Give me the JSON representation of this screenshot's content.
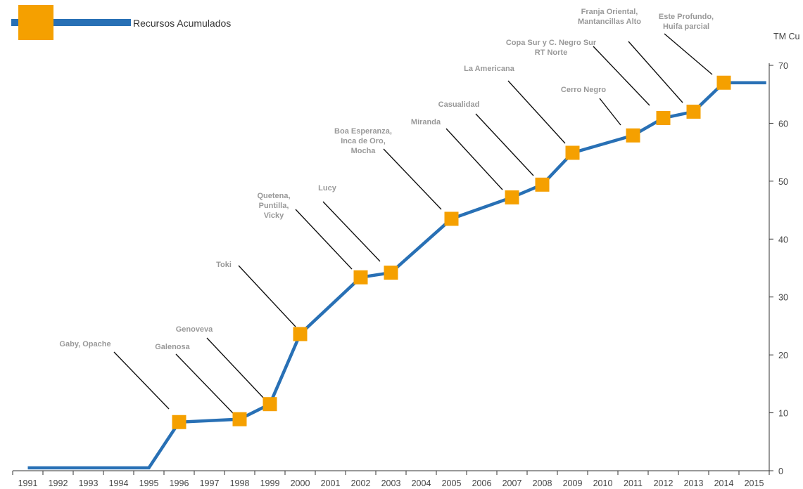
{
  "chart_data": {
    "type": "line",
    "title": "",
    "xlabel": "",
    "ylabel": "TM Cu",
    "legend": {
      "label": "Recursos Acumulados",
      "placement": "top-left"
    },
    "colors": {
      "line": "#2870b5",
      "marker": "#f5a000",
      "annotation_line": "#111111",
      "annotation_text": "#999999"
    },
    "grid": false,
    "ylim": [
      0,
      70
    ],
    "y_ticks": [
      0,
      10,
      20,
      30,
      40,
      50,
      60,
      70
    ],
    "x_ticks": [
      "1991",
      "1992",
      "1993",
      "1994",
      "1995",
      "1996",
      "1997",
      "1998",
      "1999",
      "2000",
      "2001",
      "2002",
      "2003",
      "2004",
      "2005",
      "2006",
      "2007",
      "2008",
      "2009",
      "2010",
      "2011",
      "2012",
      "2013",
      "2014",
      "2015"
    ],
    "series": [
      {
        "values_line": [
          {
            "x": 1991.5,
            "y": 0.5
          },
          {
            "x": 1995.5,
            "y": 0.5
          },
          {
            "x": 1996.5,
            "y": 8.4
          },
          {
            "x": 1998.5,
            "y": 8.9
          },
          {
            "x": 1999.5,
            "y": 11.5
          },
          {
            "x": 2000.5,
            "y": 23.6
          },
          {
            "x": 2002.5,
            "y": 33.4
          },
          {
            "x": 2003.5,
            "y": 34.2
          },
          {
            "x": 2005.5,
            "y": 43.5
          },
          {
            "x": 2007.5,
            "y": 47.2
          },
          {
            "x": 2008.5,
            "y": 49.4
          },
          {
            "x": 2009.5,
            "y": 54.9
          },
          {
            "x": 2011.5,
            "y": 57.9
          },
          {
            "x": 2012.5,
            "y": 60.9
          },
          {
            "x": 2013.5,
            "y": 62.0
          },
          {
            "x": 2014.5,
            "y": 67.0
          },
          {
            "x": 2015.9,
            "y": 67.0
          }
        ]
      }
    ],
    "markers": [
      {
        "x": 1996.5,
        "y": 8.4,
        "label": [
          "Gaby, Opache"
        ]
      },
      {
        "x": 1998.5,
        "y": 8.9,
        "label": [
          "Galenosa"
        ]
      },
      {
        "x": 1999.5,
        "y": 11.5,
        "label": [
          "Genoveva"
        ]
      },
      {
        "x": 2000.5,
        "y": 23.6,
        "label": [
          "Toki"
        ]
      },
      {
        "x": 2002.5,
        "y": 33.4,
        "label": [
          "Quetena,",
          "Puntilla,",
          "Vicky"
        ]
      },
      {
        "x": 2003.5,
        "y": 34.2,
        "label": [
          "Lucy"
        ]
      },
      {
        "x": 2005.5,
        "y": 43.5,
        "label": [
          "Boa Esperanza,",
          "Inca de Oro,",
          "Mocha"
        ]
      },
      {
        "x": 2007.5,
        "y": 47.2,
        "label": [
          "Miranda"
        ]
      },
      {
        "x": 2008.5,
        "y": 49.4,
        "label": [
          "Casualidad"
        ]
      },
      {
        "x": 2009.5,
        "y": 54.9,
        "label": [
          "La Americana"
        ]
      },
      {
        "x": 2011.5,
        "y": 57.9,
        "label": [
          "Cerro Negro"
        ]
      },
      {
        "x": 2012.5,
        "y": 60.9,
        "label": [
          "Copa Sur y C. Negro Sur",
          "RT Norte"
        ]
      },
      {
        "x": 2013.5,
        "y": 62.0,
        "label": [
          "Franja Oriental,",
          "Mantancillas Alto"
        ]
      },
      {
        "x": 2014.5,
        "y": 67.0,
        "label": [
          "Este Profundo,",
          "Huifa parcial"
        ]
      }
    ]
  }
}
